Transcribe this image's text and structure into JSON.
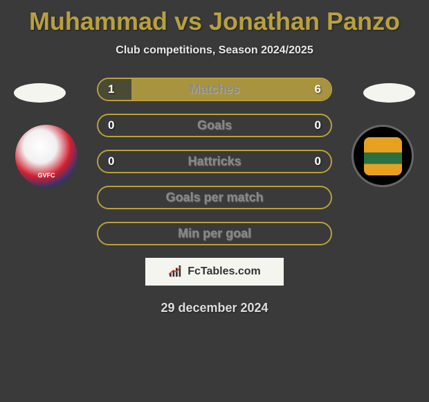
{
  "title": "Muhammad vs Jonathan Panzo",
  "subtitle": "Club competitions, Season 2024/2025",
  "date": "29 december 2024",
  "footer_text": "FcTables.com",
  "colors": {
    "accent": "#b8a040",
    "pill_border": "#b8a040",
    "pill_bg": "#5a5a40",
    "empty_pill_border": "#b8a040",
    "empty_pill_bg": "transparent",
    "label": "#888888"
  },
  "stats": [
    {
      "label": "Matches",
      "left_value": "1",
      "right_value": "6",
      "left_pct": 14.3,
      "right_pct": 85.7,
      "left_color": "#4a4a35",
      "right_color": "#a89440",
      "border_color": "#b8a040",
      "has_values": true
    },
    {
      "label": "Goals",
      "left_value": "0",
      "right_value": "0",
      "left_pct": 0,
      "right_pct": 0,
      "left_color": "transparent",
      "right_color": "transparent",
      "border_color": "#b8a040",
      "has_values": true
    },
    {
      "label": "Hattricks",
      "left_value": "0",
      "right_value": "0",
      "left_pct": 0,
      "right_pct": 0,
      "left_color": "transparent",
      "right_color": "transparent",
      "border_color": "#b8a040",
      "has_values": true
    },
    {
      "label": "Goals per match",
      "left_value": "",
      "right_value": "",
      "left_pct": 0,
      "right_pct": 0,
      "left_color": "transparent",
      "right_color": "transparent",
      "border_color": "#b8a040",
      "has_values": false
    },
    {
      "label": "Min per goal",
      "left_value": "",
      "right_value": "",
      "left_pct": 0,
      "right_pct": 0,
      "left_color": "transparent",
      "right_color": "transparent",
      "border_color": "#b8a040",
      "has_values": false
    }
  ]
}
